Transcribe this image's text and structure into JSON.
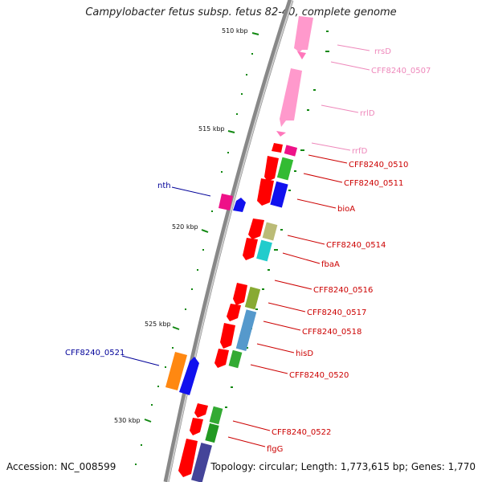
{
  "title": "Campylobacter fetus subsp. fetus 82-40, complete genome",
  "accession": "Accession: NC_008599",
  "summary": "Topology: circular; Length: 1,773,615 bp; Genes: 1,770",
  "ruler": [
    "510 kbp",
    "515 kbp",
    "520 kbp",
    "525 kbp",
    "530 kbp"
  ],
  "colors": {
    "rna_label": "#ee88bb",
    "forward_label": "#cc0000",
    "reverse_label": "#000099",
    "backbone": "#888888",
    "tick": "#118811"
  },
  "genes": [
    {
      "label": "rrsD",
      "strand": "forward",
      "type": "rRNA"
    },
    {
      "label": "CFF8240_0507",
      "strand": "forward",
      "type": "rRNA"
    },
    {
      "label": "rrlD",
      "strand": "forward",
      "type": "rRNA"
    },
    {
      "label": "rrfD",
      "strand": "forward",
      "type": "rRNA"
    },
    {
      "label": "CFF8240_0510",
      "strand": "forward",
      "type": "CDS"
    },
    {
      "label": "CFF8240_0511",
      "strand": "forward",
      "type": "CDS"
    },
    {
      "label": "bioA",
      "strand": "forward",
      "type": "CDS"
    },
    {
      "label": "nth",
      "strand": "reverse",
      "type": "CDS"
    },
    {
      "label": "CFF8240_0514",
      "strand": "forward",
      "type": "CDS"
    },
    {
      "label": "fbaA",
      "strand": "forward",
      "type": "CDS"
    },
    {
      "label": "CFF8240_0516",
      "strand": "forward",
      "type": "CDS"
    },
    {
      "label": "CFF8240_0517",
      "strand": "forward",
      "type": "CDS"
    },
    {
      "label": "CFF8240_0518",
      "strand": "forward",
      "type": "CDS"
    },
    {
      "label": "hisD",
      "strand": "forward",
      "type": "CDS"
    },
    {
      "label": "CFF8240_0520",
      "strand": "forward",
      "type": "CDS"
    },
    {
      "label": "CFF8240_0521",
      "strand": "reverse",
      "type": "CDS"
    },
    {
      "label": "CFF8240_0522",
      "strand": "forward",
      "type": "CDS"
    },
    {
      "label": "flgG",
      "strand": "forward",
      "type": "CDS"
    }
  ]
}
